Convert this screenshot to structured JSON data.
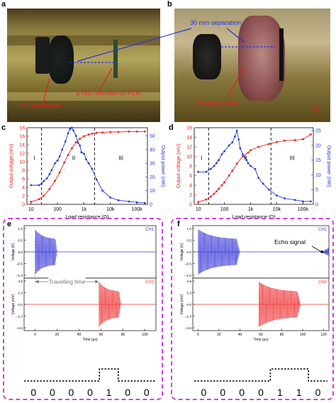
{
  "panels": {
    "a": {
      "label": "a",
      "annotations": [
        "US transducer",
        "μTEG mounted on PCB"
      ]
    },
    "b": {
      "label": "b",
      "annotations": [
        "30 mm separation",
        "Porcine tissue",
        "Oil"
      ]
    },
    "c": {
      "label": "c"
    },
    "d": {
      "label": "d"
    },
    "e": {
      "label": "e",
      "travelling_label": "Travelling time",
      "ch1": "CH1",
      "ch2": "CH2",
      "bits": [
        "0",
        "0",
        "0",
        "0",
        "1",
        "0",
        "0"
      ]
    },
    "f": {
      "label": "f",
      "echo_label": "Echo signal",
      "ch1": "CH1",
      "ch2": "CH2",
      "bits": [
        "0",
        "0",
        "0",
        "0",
        "1",
        "1",
        "0"
      ]
    }
  },
  "chart_data": [
    {
      "type": "line",
      "panel": "c",
      "xscale": "log",
      "xlabel": "Load resistance (Ω)",
      "ylabel_left": "Output voltage (mV)",
      "ylabel_right": "Output power (nW)",
      "xticks": [
        "10",
        "100",
        "1k",
        "10k",
        "100k"
      ],
      "yticks_left": [
        0,
        2,
        4,
        6,
        8,
        10,
        12,
        14,
        16,
        18
      ],
      "yticks_right": [
        0,
        10,
        20,
        30,
        40,
        50
      ],
      "region_labels": [
        "I",
        "II",
        "III"
      ],
      "region_boundaries": [
        25,
        2500
      ],
      "xlim": [
        7,
        250000
      ],
      "ylim_left": [
        0,
        18
      ],
      "ylim_right": [
        0,
        56
      ],
      "series": [
        {
          "axis": "left",
          "color": "#e8221c",
          "x": [
            10,
            20,
            30,
            50,
            80,
            120,
            180,
            250,
            350,
            500,
            700,
            1000,
            1500,
            2000,
            3000,
            5000,
            10000,
            20000,
            50000,
            100000,
            200000
          ],
          "values": [
            0.6,
            1.2,
            2.0,
            3.6,
            5.5,
            7.5,
            9.8,
            11.6,
            13.2,
            14.6,
            15.4,
            16.0,
            16.4,
            16.6,
            16.8,
            16.9,
            17.0,
            17.0,
            17.1,
            17.1,
            17.1
          ]
        },
        {
          "axis": "right",
          "color": "#2340c8",
          "x": [
            10,
            20,
            25,
            30,
            40,
            50,
            60,
            80,
            100,
            120,
            150,
            200,
            250,
            300,
            350,
            400,
            500,
            600,
            700,
            800,
            1000,
            1200,
            1500,
            2000,
            3000,
            5000,
            10000,
            20000,
            50000,
            100000,
            200000
          ],
          "values": [
            14,
            14,
            15,
            17,
            19,
            22,
            25,
            30,
            32,
            35,
            40,
            46,
            52,
            55,
            56,
            54,
            50,
            45,
            43,
            38,
            37,
            33,
            30,
            26,
            18,
            10,
            5,
            3,
            2,
            1.5,
            1
          ]
        }
      ]
    },
    {
      "type": "line",
      "panel": "d",
      "xscale": "log",
      "xlabel": "Load resistance (Ω)",
      "ylabel_left": "Output voltage (mV)",
      "ylabel_right": "Output power (nW)",
      "xticks": [
        "10",
        "100",
        "1k",
        "10k",
        "100k"
      ],
      "yticks_left": [
        0,
        2,
        4,
        6,
        8,
        10,
        12,
        14,
        16
      ],
      "yticks_right": [
        0,
        5,
        10,
        15,
        20,
        25
      ],
      "region_labels": [
        "I",
        "II",
        "III"
      ],
      "region_boundaries": [
        25,
        6000
      ],
      "xlim": [
        7,
        250000
      ],
      "ylim_left": [
        0,
        16
      ],
      "ylim_right": [
        0,
        26
      ],
      "series": [
        {
          "axis": "left",
          "color": "#e8221c",
          "x": [
            10,
            20,
            30,
            40,
            50,
            60,
            80,
            100,
            150,
            200,
            300,
            500,
            800,
            1000,
            2000,
            5000,
            10000,
            20000,
            50000,
            100000,
            200000
          ],
          "values": [
            0.5,
            1.0,
            1.6,
            2.2,
            2.7,
            3.2,
            4.0,
            4.6,
            6.0,
            7.0,
            8.5,
            10.0,
            10.8,
            11.3,
            12.0,
            12.6,
            13.0,
            13.3,
            13.4,
            13.6,
            14.6
          ]
        },
        {
          "axis": "right",
          "color": "#2340c8",
          "x": [
            10,
            20,
            30,
            40,
            50,
            60,
            80,
            100,
            150,
            200,
            250,
            300,
            350,
            400,
            500,
            600,
            700,
            800,
            1000,
            1500,
            2000,
            3000,
            5000,
            10000,
            20000,
            50000,
            100000,
            200000
          ],
          "values": [
            11,
            11,
            12,
            13,
            14,
            15,
            17,
            18,
            20,
            21,
            23,
            25,
            22,
            19,
            17,
            16,
            15,
            14,
            13,
            12,
            9,
            7,
            5,
            3,
            2,
            1.5,
            1,
            1
          ]
        }
      ]
    },
    {
      "type": "line",
      "panel": "e",
      "xlabel": "Time (μs)",
      "xticks": [
        "0",
        "20",
        "40",
        "60",
        "80",
        "100"
      ],
      "xlim": [
        -10,
        110
      ],
      "ch1": {
        "ylabel": "Voltage (V)",
        "yticks": [
          "1.0",
          "0.5",
          "0.0",
          "–0.5",
          "–1.0"
        ],
        "ylim": [
          -1.0,
          1.0
        ],
        "burst_start_us": 0,
        "burst_end_us": 20,
        "color": "#3a3ad8"
      },
      "ch2": {
        "ylabel": "Voltage (mV)",
        "yticks": [
          "4.6",
          "2.3",
          "0.0",
          "–2.3",
          "–4.6"
        ],
        "ylim": [
          -4.6,
          4.6
        ],
        "burst_start_us": 58,
        "burst_end_us": 78,
        "color": "#ee3333"
      }
    },
    {
      "type": "line",
      "panel": "f",
      "xlabel": "Time (μs)",
      "xticks": [
        "0",
        "20",
        "40",
        "60",
        "80",
        "100",
        "120"
      ],
      "xlim": [
        -5,
        125
      ],
      "ch1": {
        "ylabel": "Voltage (V)",
        "yticks": [
          "1.0",
          "0.5",
          "0.0",
          "–0.5",
          "–1.0"
        ],
        "ylim": [
          -1.0,
          1.0
        ],
        "burst_start_us": 0,
        "burst_end_us": 40,
        "echo_start_us": 118,
        "color": "#3a3ad8"
      },
      "ch2": {
        "ylabel": "Voltage (mV)",
        "yticks": [
          "4.6",
          "2.3",
          "0.0",
          "–2.3",
          "–4.6"
        ],
        "ylim": [
          -4.6,
          4.6
        ],
        "burst_start_us": 58,
        "burst_end_us": 98,
        "color": "#ee3333"
      }
    }
  ]
}
